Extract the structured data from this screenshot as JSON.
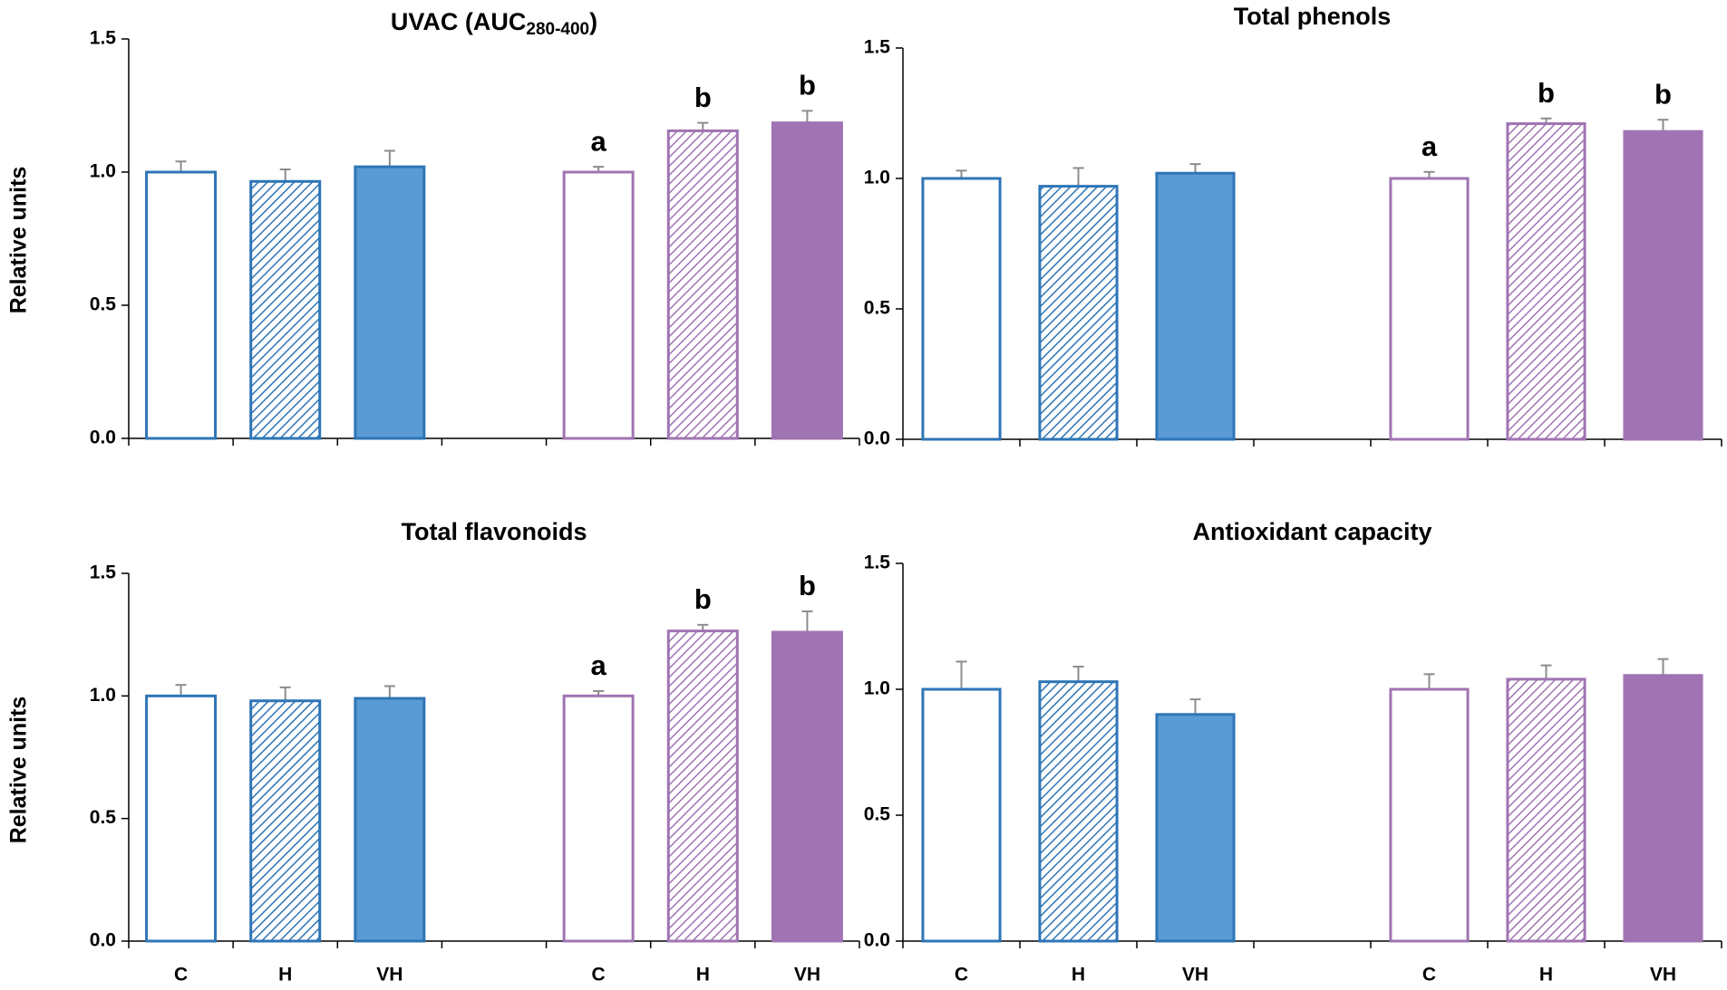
{
  "chart_data": [
    {
      "type": "bar",
      "title": "UVAC (AUC",
      "title_subscript": "280-400",
      "title_end": ")",
      "y_label": "Relative units",
      "values": [
        1.0,
        0.965,
        1.02,
        null,
        1.0,
        1.155,
        1.185
      ],
      "errors": [
        0.04,
        0.045,
        0.06,
        null,
        0.02,
        0.03,
        0.045
      ],
      "letters": [
        null,
        null,
        null,
        null,
        "a",
        "b",
        "b"
      ],
      "colors": [
        "#2e75b6",
        "#2e75b6",
        "#2e75b6",
        null,
        "#a074b2",
        "#a074b2",
        "#a074b2"
      ],
      "fill_colors": [
        "#5b9bd5",
        "#5b9bd5",
        "#5b9bd5",
        null,
        "#a074b2",
        "#a074b2",
        "#a074b2"
      ],
      "fills": [
        "open",
        "hatched",
        "solid",
        null,
        "open",
        "hatched",
        "solid"
      ],
      "ylim": [
        0,
        1.5
      ],
      "yticks": [
        {
          "value": 0,
          "label": "0.0"
        },
        0.5,
        {
          "value": 1,
          "label": "1.0"
        },
        1.5
      ],
      "error_color": "#8c8c8c"
    },
    {
      "type": "bar",
      "title": "Total phenols",
      "values": [
        1.0,
        0.97,
        1.02,
        null,
        1.0,
        1.21,
        1.18
      ],
      "errors": [
        0.03,
        0.07,
        0.035,
        null,
        0.025,
        0.02,
        0.045
      ],
      "letters": [
        null,
        null,
        null,
        null,
        "a",
        "b",
        "b"
      ],
      "colors": [
        "#2e75b6",
        "#2e75b6",
        "#2e75b6",
        null,
        "#a074b2",
        "#a074b2",
        "#a074b2"
      ],
      "fill_colors": [
        "#5b9bd5",
        "#5b9bd5",
        "#5b9bd5",
        null,
        "#a074b2",
        "#a074b2",
        "#a074b2"
      ],
      "fills": [
        "open",
        "hatched",
        "solid",
        null,
        "open",
        "hatched",
        "solid"
      ],
      "ylim": [
        0,
        1.5
      ],
      "yticks": [
        {
          "value": 0,
          "label": "0.0"
        },
        0.5,
        {
          "value": 1,
          "label": "1.0"
        },
        1.5
      ],
      "error_color": "#8c8c8c"
    },
    {
      "type": "bar",
      "title": "Total flavonoids",
      "y_label": "Relative units",
      "categories": [
        "C",
        "H",
        "VH",
        null,
        "C",
        "H",
        "VH"
      ],
      "values": [
        1.0,
        0.98,
        0.99,
        null,
        1.0,
        1.265,
        1.26
      ],
      "errors": [
        0.045,
        0.055,
        0.05,
        null,
        0.02,
        0.025,
        0.085
      ],
      "letters": [
        null,
        null,
        null,
        null,
        "a",
        "b",
        "b"
      ],
      "colors": [
        "#2e75b6",
        "#2e75b6",
        "#2e75b6",
        null,
        "#a074b2",
        "#a074b2",
        "#a074b2"
      ],
      "fill_colors": [
        "#5b9bd5",
        "#5b9bd5",
        "#5b9bd5",
        null,
        "#a074b2",
        "#a074b2",
        "#a074b2"
      ],
      "fills": [
        "open",
        "hatched",
        "solid",
        null,
        "open",
        "hatched",
        "solid"
      ],
      "ylim": [
        0,
        1.5
      ],
      "yticks": [
        {
          "value": 0,
          "label": "0.0"
        },
        0.5,
        {
          "value": 1,
          "label": "1.0"
        },
        1.5
      ],
      "error_color": "#8c8c8c"
    },
    {
      "type": "bar",
      "title": "Antioxidant capacity",
      "categories": [
        "C",
        "H",
        "VH",
        null,
        "C",
        "H",
        "VH"
      ],
      "values": [
        1.0,
        1.03,
        0.9,
        null,
        1.0,
        1.04,
        1.055
      ],
      "errors": [
        0.11,
        0.06,
        0.06,
        null,
        0.06,
        0.055,
        0.065
      ],
      "colors": [
        "#2e75b6",
        "#2e75b6",
        "#2e75b6",
        null,
        "#a074b2",
        "#a074b2",
        "#a074b2"
      ],
      "fill_colors": [
        "#5b9bd5",
        "#5b9bd5",
        "#5b9bd5",
        null,
        "#a074b2",
        "#a074b2",
        "#a074b2"
      ],
      "fills": [
        "open",
        "hatched",
        "solid",
        null,
        "open",
        "hatched",
        "solid"
      ],
      "ylim": [
        0,
        1.5
      ],
      "yticks": [
        {
          "value": 0,
          "label": "0.0"
        },
        0.5,
        {
          "value": 1,
          "label": "1.0"
        },
        1.5
      ],
      "error_color": "#8c8c8c"
    }
  ]
}
